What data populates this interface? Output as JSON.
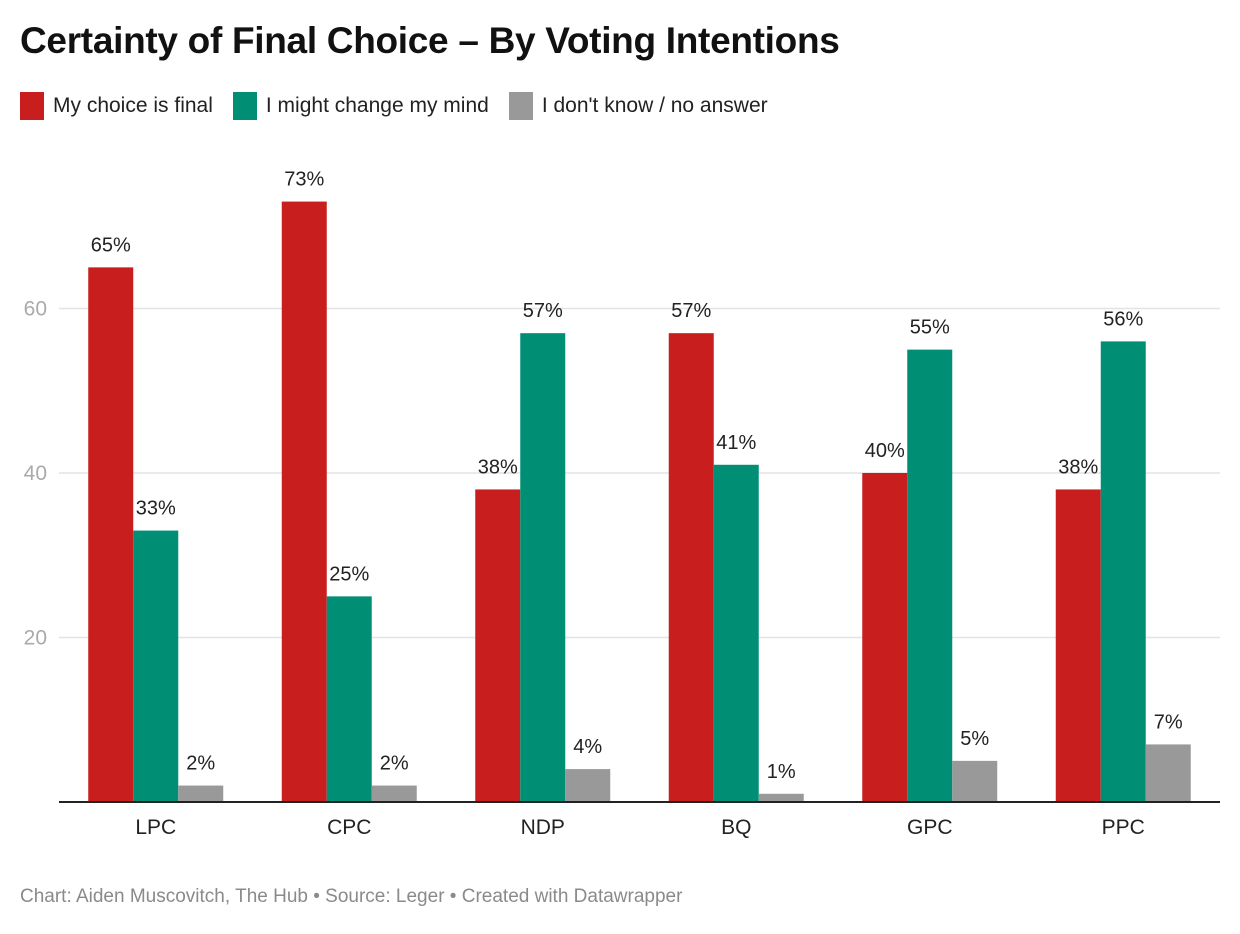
{
  "chart_data": {
    "type": "bar",
    "title": "Certainty of Final Choice – By Voting Intentions",
    "xlabel": "",
    "ylabel": "",
    "ylim": [
      0,
      73
    ],
    "yticks": [
      20,
      40,
      60
    ],
    "grid": true,
    "legend_position": "top-left",
    "categories": [
      "LPC",
      "CPC",
      "NDP",
      "BQ",
      "GPC",
      "PPC"
    ],
    "series": [
      {
        "name": "My choice is final",
        "color": "#c81e1e",
        "values": [
          65,
          73,
          38,
          57,
          40,
          38
        ]
      },
      {
        "name": "I might change my mind",
        "color": "#008f74",
        "values": [
          33,
          25,
          57,
          41,
          55,
          56
        ]
      },
      {
        "name": "I don't know / no answer",
        "color": "#999999",
        "values": [
          2,
          2,
          4,
          1,
          5,
          7
        ]
      }
    ],
    "value_suffix": "%"
  },
  "footer": "Chart: Aiden Muscovitch, The Hub • Source: Leger • Created with Datawrapper"
}
